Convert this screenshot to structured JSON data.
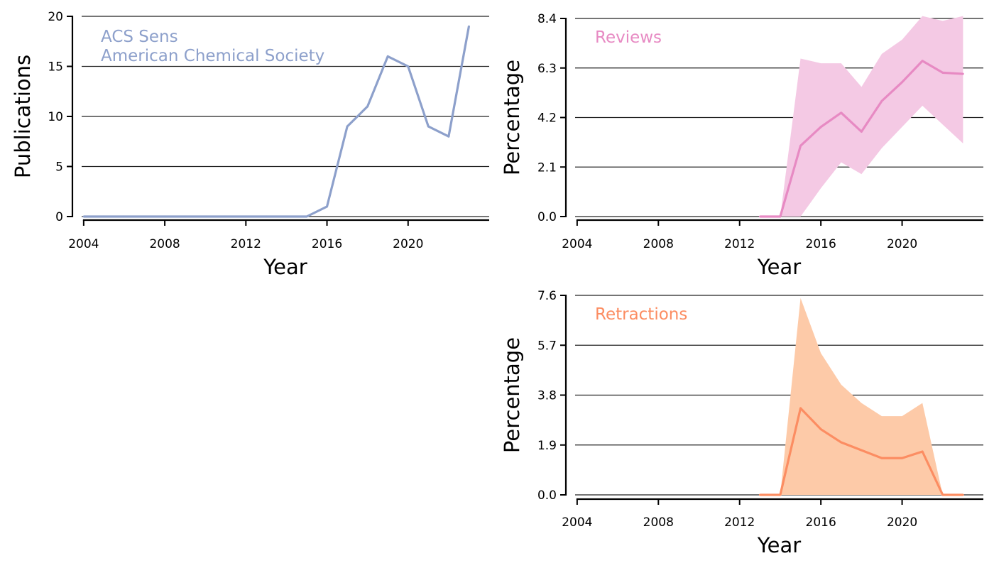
{
  "chart_data": [
    {
      "id": "publications",
      "type": "line",
      "xlabel": "Year",
      "ylabel": "Publications",
      "xlim": [
        2003.9,
        2024.0
      ],
      "ylim": [
        0,
        20
      ],
      "xticks": [
        2004,
        2008,
        2012,
        2016,
        2020
      ],
      "yticks": [
        0,
        5,
        10,
        15,
        20
      ],
      "ytick_labels": [
        "0",
        "5",
        "10",
        "15",
        "20"
      ],
      "grid": "horizontal",
      "annotations": [
        "ACS Sens",
        "American Chemical Society"
      ],
      "color": "#8da0cb",
      "series": [
        {
          "x": [
            2004,
            2005,
            2006,
            2007,
            2008,
            2009,
            2010,
            2011,
            2012,
            2013,
            2014,
            2015,
            2016,
            2017,
            2018,
            2019,
            2020,
            2021,
            2022,
            2023
          ],
          "values": [
            0,
            0,
            0,
            0,
            0,
            0,
            0,
            0,
            0,
            0,
            0,
            0,
            1,
            9,
            11,
            16,
            15,
            9,
            8,
            19
          ]
        }
      ]
    },
    {
      "id": "reviews",
      "type": "line",
      "xlabel": "Year",
      "ylabel": "Percentage",
      "xlim": [
        2003.9,
        2024.0
      ],
      "ylim": [
        0,
        8.4
      ],
      "xticks": [
        2004,
        2008,
        2012,
        2016,
        2020
      ],
      "yticks": [
        0,
        2.1,
        4.2,
        6.3,
        8.4
      ],
      "ytick_labels": [
        "0.0",
        "2.1",
        "4.2",
        "6.3",
        "8.4"
      ],
      "grid": "horizontal",
      "annotations": [
        "Reviews"
      ],
      "color": "#e78ac3",
      "band_color": "#f4c9e4",
      "series": [
        {
          "x": [
            2013,
            2014,
            2015,
            2016,
            2017,
            2018,
            2019,
            2020,
            2021,
            2022,
            2023
          ],
          "values": [
            0,
            0,
            3.0,
            3.8,
            4.4,
            3.6,
            4.9,
            5.7,
            6.6,
            6.1,
            6.05
          ],
          "lower": [
            0,
            0,
            0,
            1.2,
            2.3,
            1.8,
            2.9,
            3.8,
            4.7,
            3.9,
            3.1
          ],
          "upper": [
            0,
            0,
            6.7,
            6.5,
            6.5,
            5.5,
            6.9,
            7.5,
            8.5,
            8.3,
            8.5
          ]
        }
      ]
    },
    {
      "id": "retractions",
      "type": "line",
      "xlabel": "Year",
      "ylabel": "Percentage",
      "xlim": [
        2003.9,
        2024.0
      ],
      "ylim": [
        0,
        7.6
      ],
      "xticks": [
        2004,
        2008,
        2012,
        2016,
        2020
      ],
      "yticks": [
        0,
        1.9,
        3.8,
        5.7,
        7.6
      ],
      "ytick_labels": [
        "0.0",
        "1.9",
        "3.8",
        "5.7",
        "7.6"
      ],
      "grid": "horizontal",
      "annotations": [
        "Retractions"
      ],
      "color": "#fc8d62",
      "band_color": "#fdcaa8",
      "series": [
        {
          "x": [
            2013,
            2014,
            2015,
            2016,
            2017,
            2018,
            2019,
            2020,
            2021,
            2022,
            2023
          ],
          "values": [
            0,
            0,
            3.3,
            2.5,
            2.0,
            1.7,
            1.4,
            1.4,
            1.65,
            0,
            0
          ],
          "lower": [
            0,
            0,
            0,
            0,
            0,
            0,
            0,
            0,
            0,
            0,
            0
          ],
          "upper": [
            0,
            0,
            7.5,
            5.4,
            4.2,
            3.5,
            3.0,
            3.0,
            3.5,
            0,
            0
          ]
        }
      ]
    }
  ]
}
